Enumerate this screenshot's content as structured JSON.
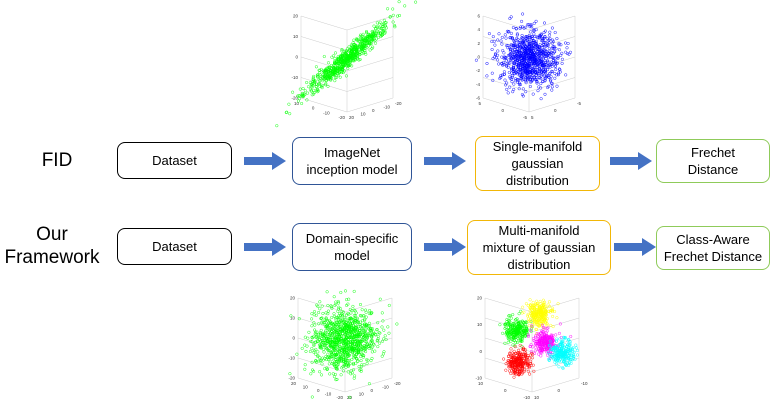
{
  "rows": [
    {
      "label": "FID",
      "boxes": [
        {
          "text": "Dataset",
          "color": "#000000"
        },
        {
          "text": "ImageNet\ninception model",
          "color": "#2f5597"
        },
        {
          "text": "Single-manifold\ngaussian\ndistribution",
          "color": "#f2b707"
        },
        {
          "text": "Frechet\nDistance",
          "color": "#8fcb5a"
        }
      ]
    },
    {
      "label": "Our\nFramework",
      "boxes": [
        {
          "text": "Dataset",
          "color": "#000000"
        },
        {
          "text": "Domain-specific\nmodel",
          "color": "#2f5597"
        },
        {
          "text": "Multi-manifold\nmixture of gaussian\ndistribution",
          "color": "#f2b707"
        },
        {
          "text": "Class-Aware\nFrechet Distance",
          "color": "#8fcb5a"
        }
      ]
    }
  ],
  "arrow_color": "#4472c4",
  "plots": {
    "top_left": {
      "color": "#00ff00",
      "ticks_z": [
        "20",
        "10",
        "0",
        "-10",
        "-20"
      ],
      "ticks_x": [
        "10",
        "0",
        "-10",
        "-20"
      ],
      "ticks_y": [
        "20",
        "10",
        "0",
        "-10",
        "-20"
      ]
    },
    "top_right": {
      "color": "#0000ff",
      "ticks_z": [
        "6",
        "4",
        "2",
        "0",
        "-2",
        "-4",
        "-6"
      ],
      "ticks_x": [
        "5",
        "0",
        "-5"
      ],
      "ticks_y": [
        "5",
        "0",
        "-5"
      ]
    },
    "bottom_left": {
      "color": "#00ff00",
      "ticks_z": [
        "20",
        "10",
        "0",
        "-10",
        "-20"
      ],
      "ticks_x": [
        "20",
        "10",
        "0",
        "-10",
        "-20"
      ],
      "ticks_y": [
        "20",
        "10",
        "0",
        "-10",
        "-20"
      ]
    },
    "bottom_right": {
      "colors": [
        "#00ff00",
        "#ffff00",
        "#ff00ff",
        "#00ffff",
        "#ff0000"
      ],
      "ticks_z": [
        "20",
        "10",
        "0",
        "-10"
      ],
      "ticks_x": [
        "10",
        "0",
        "-10"
      ],
      "ticks_y": [
        "10",
        "0",
        "-10"
      ]
    }
  }
}
